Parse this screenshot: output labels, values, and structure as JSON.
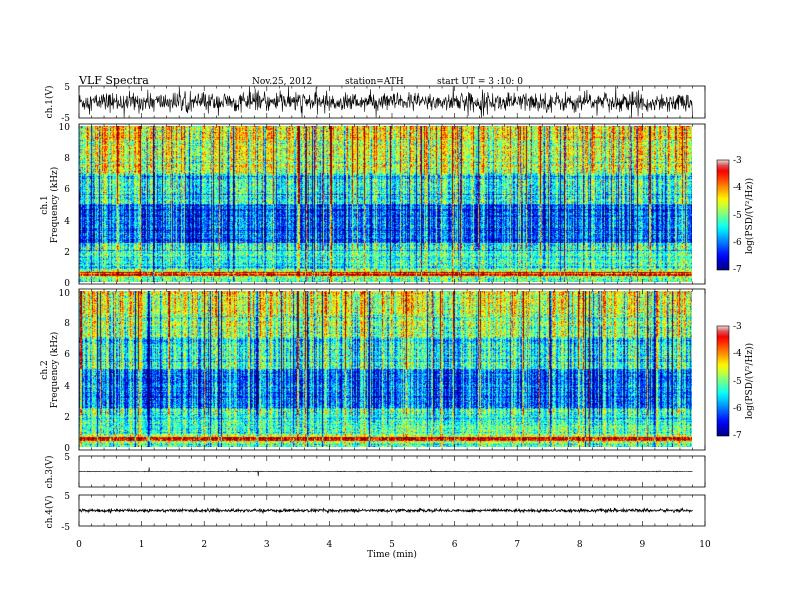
{
  "header": {
    "title": "VLF  Spectra",
    "date": "Nov.25, 2012",
    "station": "station=ATH",
    "start": "start  UT  =   3  :10: 0"
  },
  "chart_data": [
    {
      "type": "line",
      "title": "",
      "ylabel": "ch.1(V)",
      "xlim": [
        0,
        10
      ],
      "ylim": [
        -5,
        5
      ],
      "yticks": [
        "5",
        "-5"
      ],
      "series": [
        {
          "description_level": 0,
          "noise_amplitude": 1.5
        }
      ]
    },
    {
      "type": "heatmap",
      "ylabel": "ch.1\nFrequency  (kHz)",
      "ylabel_lines": [
        "ch.1",
        "Frequency  (kHz)"
      ],
      "xlim": [
        0,
        9.8
      ],
      "ylim": [
        0,
        10
      ],
      "yticks": [
        "0",
        "2",
        "4",
        "6",
        "8",
        "10"
      ],
      "colorbar": {
        "label": "log(PSD/(V²/Hz))",
        "range": [
          -7,
          -3
        ],
        "ticks": [
          "-3",
          "-4",
          "-5",
          "-6",
          "-7"
        ]
      }
    },
    {
      "type": "heatmap",
      "ylabel": "ch.2\nFrequency  (kHz)",
      "ylabel_lines": [
        "ch.2",
        "Frequency  (kHz)"
      ],
      "xlim": [
        0,
        9.8
      ],
      "ylim": [
        0,
        10
      ],
      "yticks": [
        "0",
        "2",
        "4",
        "6",
        "8",
        "10"
      ],
      "colorbar": {
        "label": "log(PSD/(V²/Hz))",
        "range": [
          -7,
          -3
        ],
        "ticks": [
          "-3",
          "-4",
          "-5",
          "-6",
          "-7"
        ]
      }
    },
    {
      "type": "line",
      "ylabel": "ch.3(V)",
      "xlim": [
        0,
        10
      ],
      "ylim": [
        -5,
        5
      ],
      "yticks": [
        "5"
      ],
      "series": [
        {
          "description_level": 0,
          "noise_amplitude": 0.05
        }
      ]
    },
    {
      "type": "line",
      "ylabel": "ch.4(V)",
      "xlim": [
        0,
        10
      ],
      "ylim": [
        -5,
        5
      ],
      "yticks": [
        "5",
        "-5"
      ],
      "series": [
        {
          "description_level": 0,
          "noise_amplitude": 0.25
        }
      ]
    }
  ],
  "xaxis": {
    "label": "Time  (min)",
    "ticks": [
      "0",
      "1",
      "2",
      "3",
      "4",
      "5",
      "6",
      "7",
      "8",
      "9",
      "10"
    ]
  }
}
